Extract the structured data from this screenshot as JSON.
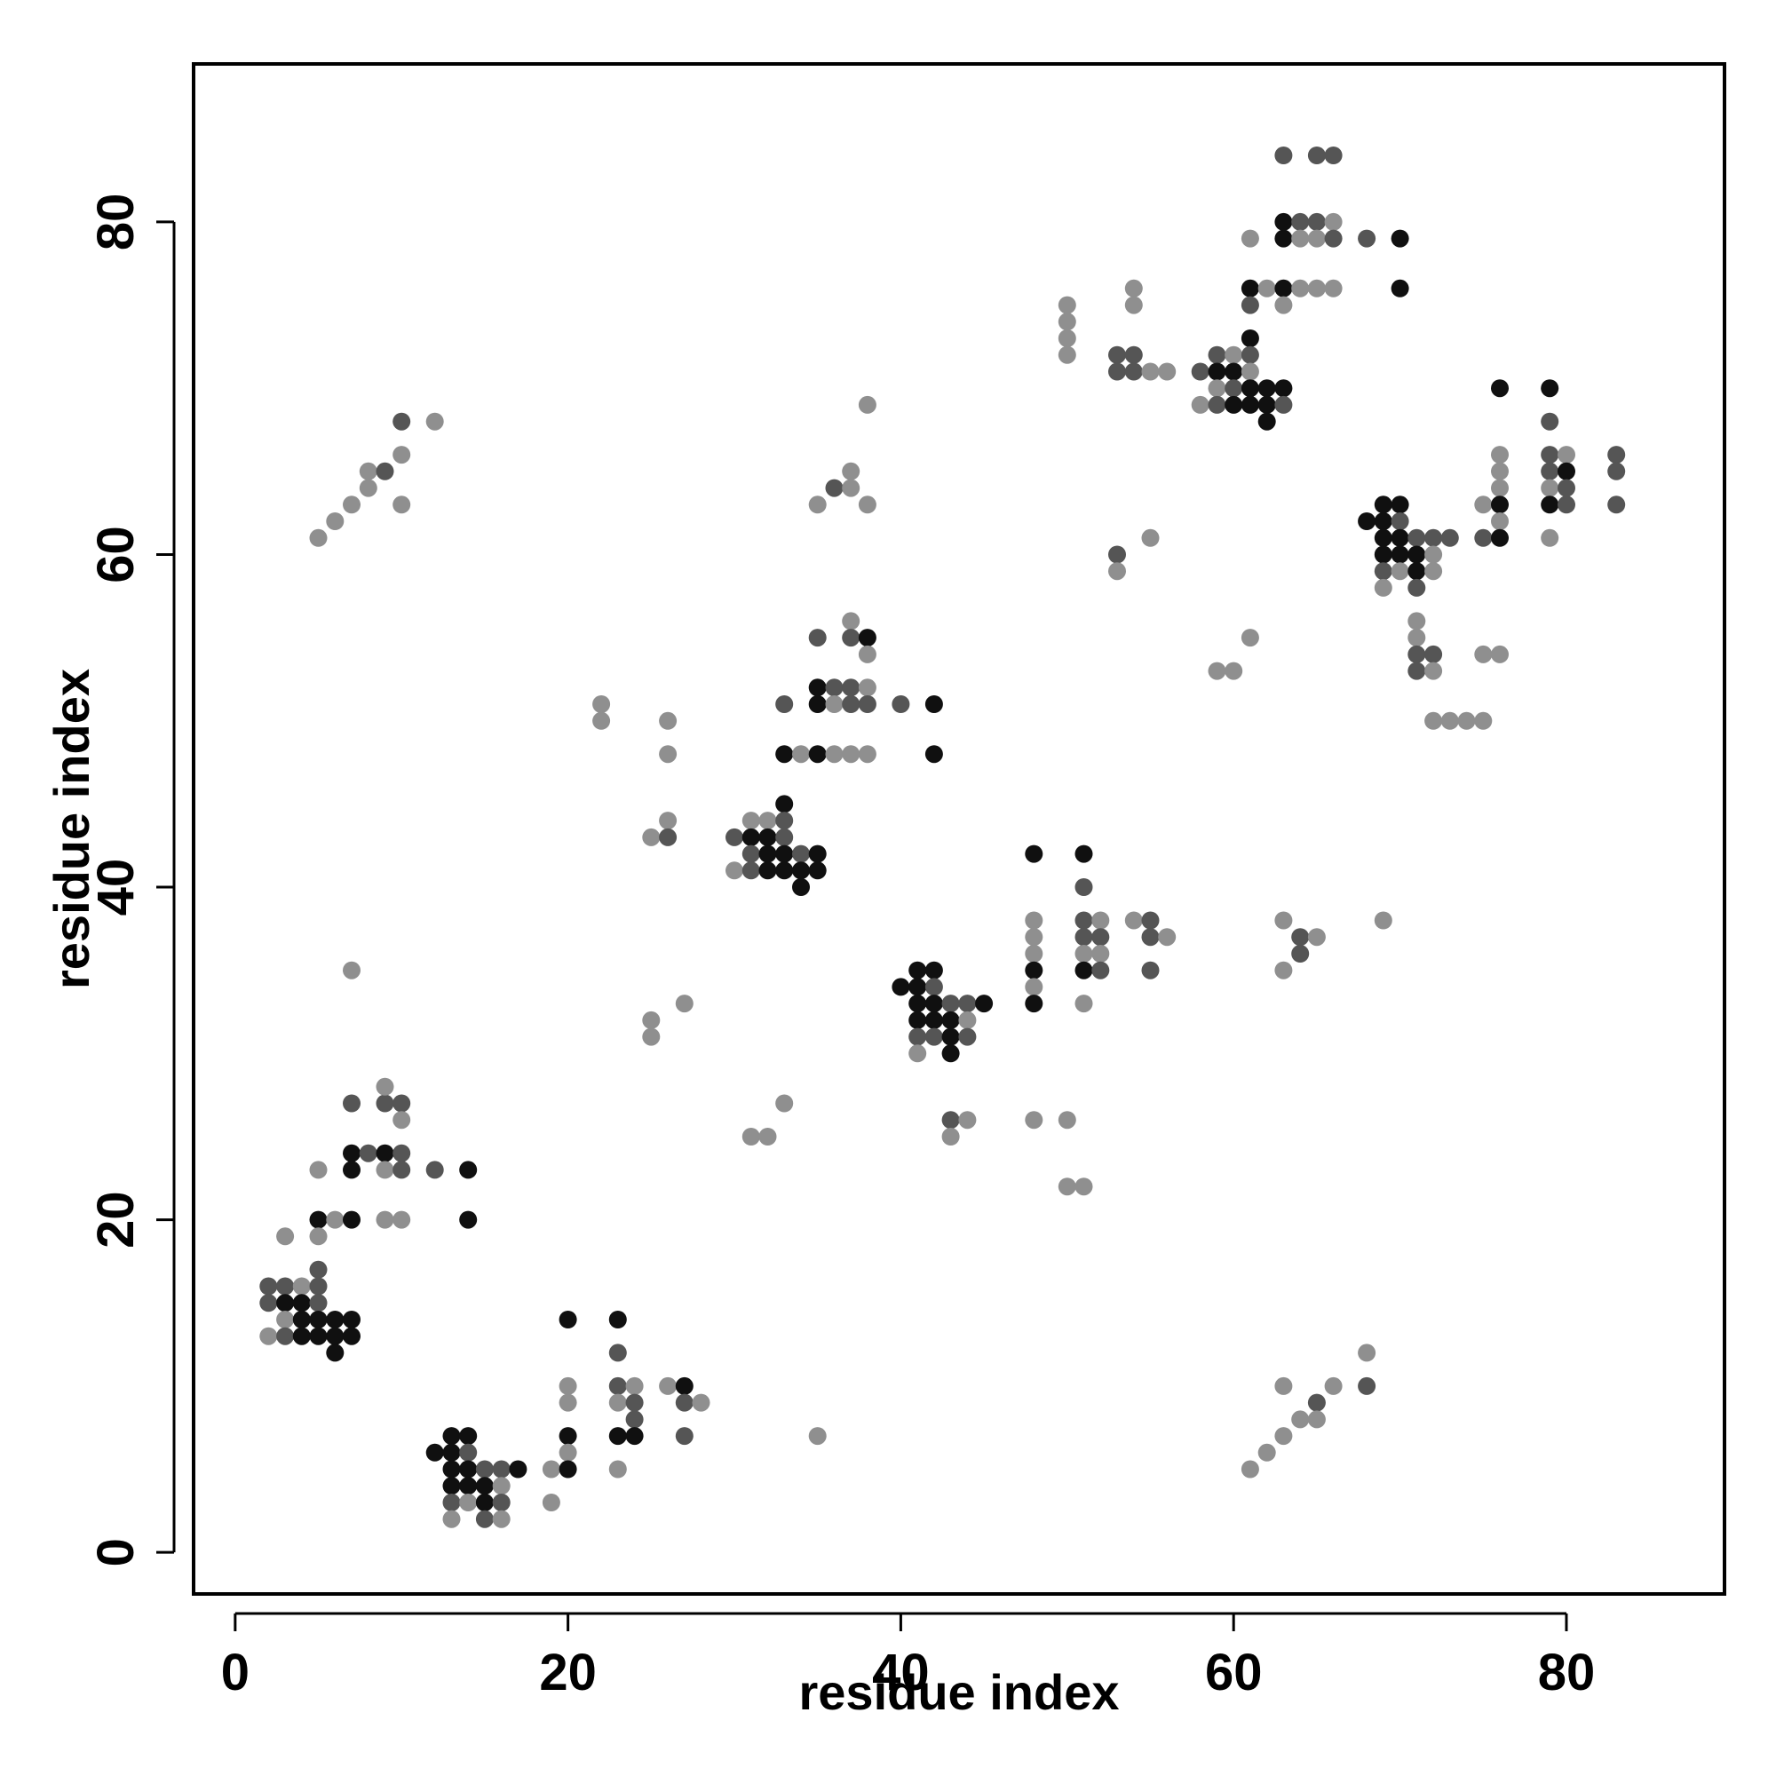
{
  "chart_data": {
    "type": "scatter",
    "title": "",
    "xlabel": "residue index",
    "ylabel": "residue index",
    "xlim": [
      -2.5,
      89.5
    ],
    "ylim": [
      -2.5,
      89.5
    ],
    "xticks": [
      0,
      20,
      40,
      60,
      80
    ],
    "yticks": [
      0,
      20,
      40,
      60,
      80
    ],
    "xtick_labels": [
      "0",
      "20",
      "40",
      "60",
      "80"
    ],
    "ytick_labels": [
      "0",
      "20",
      "40",
      "60",
      "80"
    ],
    "grid": false,
    "legend": "none",
    "colors": {
      "dark": "#101010",
      "mid": "#555555",
      "light": "#8f8f8f"
    },
    "points": [
      [
        2,
        16,
        "mid"
      ],
      [
        2,
        15,
        "mid"
      ],
      [
        2,
        13,
        "light"
      ],
      [
        3,
        16,
        "mid"
      ],
      [
        3,
        15,
        "dark"
      ],
      [
        3,
        14,
        "light"
      ],
      [
        3,
        13,
        "mid"
      ],
      [
        4,
        16,
        "light"
      ],
      [
        4,
        15,
        "dark"
      ],
      [
        4,
        14,
        "dark"
      ],
      [
        4,
        13,
        "dark"
      ],
      [
        5,
        20,
        "dark"
      ],
      [
        5,
        19,
        "light"
      ],
      [
        5,
        17,
        "mid"
      ],
      [
        5,
        16,
        "mid"
      ],
      [
        5,
        15,
        "mid"
      ],
      [
        5,
        14,
        "dark"
      ],
      [
        5,
        13,
        "dark"
      ],
      [
        6,
        14,
        "dark"
      ],
      [
        6,
        13,
        "dark"
      ],
      [
        6,
        12,
        "dark"
      ],
      [
        7,
        14,
        "dark"
      ],
      [
        7,
        13,
        "dark"
      ],
      [
        3,
        19,
        "light"
      ],
      [
        5,
        23,
        "light"
      ],
      [
        6,
        20,
        "light"
      ],
      [
        7,
        20,
        "dark"
      ],
      [
        7,
        23,
        "dark"
      ],
      [
        7,
        24,
        "dark"
      ],
      [
        7,
        27,
        "mid"
      ],
      [
        8,
        24,
        "mid"
      ],
      [
        9,
        24,
        "dark"
      ],
      [
        9,
        23,
        "light"
      ],
      [
        9,
        20,
        "light"
      ],
      [
        9,
        27,
        "mid"
      ],
      [
        9,
        28,
        "light"
      ],
      [
        10,
        27,
        "mid"
      ],
      [
        10,
        26,
        "light"
      ],
      [
        10,
        24,
        "mid"
      ],
      [
        10,
        23,
        "mid"
      ],
      [
        10,
        20,
        "light"
      ],
      [
        12,
        23,
        "mid"
      ],
      [
        14,
        23,
        "dark"
      ],
      [
        14,
        20,
        "dark"
      ],
      [
        7,
        35,
        "light"
      ],
      [
        5,
        61,
        "light"
      ],
      [
        6,
        62,
        "light"
      ],
      [
        7,
        63,
        "light"
      ],
      [
        8,
        64,
        "light"
      ],
      [
        8,
        65,
        "light"
      ],
      [
        9,
        65,
        "mid"
      ],
      [
        10,
        66,
        "light"
      ],
      [
        10,
        68,
        "mid"
      ],
      [
        10,
        63,
        "light"
      ],
      [
        12,
        68,
        "light"
      ],
      [
        12,
        6,
        "dark"
      ],
      [
        13,
        7,
        "dark"
      ],
      [
        13,
        6,
        "dark"
      ],
      [
        13,
        5,
        "dark"
      ],
      [
        13,
        4,
        "dark"
      ],
      [
        13,
        3,
        "mid"
      ],
      [
        13,
        2,
        "light"
      ],
      [
        14,
        7,
        "dark"
      ],
      [
        14,
        6,
        "mid"
      ],
      [
        14,
        5,
        "dark"
      ],
      [
        14,
        4,
        "dark"
      ],
      [
        14,
        3,
        "light"
      ],
      [
        15,
        5,
        "mid"
      ],
      [
        15,
        4,
        "dark"
      ],
      [
        15,
        3,
        "dark"
      ],
      [
        15,
        2,
        "mid"
      ],
      [
        16,
        5,
        "mid"
      ],
      [
        16,
        4,
        "light"
      ],
      [
        16,
        3,
        "mid"
      ],
      [
        16,
        2,
        "light"
      ],
      [
        17,
        5,
        "dark"
      ],
      [
        19,
        5,
        "light"
      ],
      [
        19,
        3,
        "light"
      ],
      [
        20,
        14,
        "dark"
      ],
      [
        20,
        10,
        "light"
      ],
      [
        20,
        9,
        "light"
      ],
      [
        20,
        7,
        "dark"
      ],
      [
        20,
        6,
        "light"
      ],
      [
        20,
        5,
        "dark"
      ],
      [
        23,
        14,
        "dark"
      ],
      [
        23,
        12,
        "mid"
      ],
      [
        23,
        10,
        "mid"
      ],
      [
        23,
        9,
        "light"
      ],
      [
        23,
        7,
        "dark"
      ],
      [
        23,
        5,
        "light"
      ],
      [
        24,
        10,
        "light"
      ],
      [
        24,
        9,
        "mid"
      ],
      [
        24,
        8,
        "mid"
      ],
      [
        24,
        7,
        "dark"
      ],
      [
        26,
        10,
        "light"
      ],
      [
        27,
        10,
        "dark"
      ],
      [
        27,
        9,
        "mid"
      ],
      [
        27,
        7,
        "mid"
      ],
      [
        28,
        9,
        "light"
      ],
      [
        35,
        7,
        "light"
      ],
      [
        22,
        51,
        "light"
      ],
      [
        22,
        50,
        "light"
      ],
      [
        26,
        50,
        "light"
      ],
      [
        26,
        48,
        "light"
      ],
      [
        25,
        43,
        "light"
      ],
      [
        26,
        44,
        "light"
      ],
      [
        26,
        43,
        "mid"
      ],
      [
        25,
        32,
        "light"
      ],
      [
        25,
        31,
        "light"
      ],
      [
        27,
        33,
        "light"
      ],
      [
        31,
        25,
        "light"
      ],
      [
        32,
        25,
        "light"
      ],
      [
        33,
        27,
        "light"
      ],
      [
        30,
        43,
        "mid"
      ],
      [
        30,
        41,
        "light"
      ],
      [
        31,
        44,
        "light"
      ],
      [
        31,
        43,
        "dark"
      ],
      [
        31,
        42,
        "mid"
      ],
      [
        31,
        41,
        "mid"
      ],
      [
        32,
        44,
        "light"
      ],
      [
        32,
        43,
        "dark"
      ],
      [
        32,
        42,
        "dark"
      ],
      [
        32,
        41,
        "dark"
      ],
      [
        33,
        45,
        "dark"
      ],
      [
        33,
        44,
        "mid"
      ],
      [
        33,
        43,
        "mid"
      ],
      [
        33,
        42,
        "dark"
      ],
      [
        33,
        41,
        "dark"
      ],
      [
        34,
        42,
        "mid"
      ],
      [
        34,
        41,
        "dark"
      ],
      [
        34,
        40,
        "dark"
      ],
      [
        35,
        42,
        "dark"
      ],
      [
        35,
        41,
        "dark"
      ],
      [
        33,
        51,
        "mid"
      ],
      [
        33,
        48,
        "dark"
      ],
      [
        34,
        48,
        "light"
      ],
      [
        35,
        55,
        "mid"
      ],
      [
        35,
        52,
        "dark"
      ],
      [
        35,
        51,
        "dark"
      ],
      [
        35,
        48,
        "dark"
      ],
      [
        36,
        52,
        "mid"
      ],
      [
        36,
        51,
        "light"
      ],
      [
        36,
        48,
        "light"
      ],
      [
        37,
        56,
        "light"
      ],
      [
        37,
        55,
        "mid"
      ],
      [
        37,
        52,
        "mid"
      ],
      [
        37,
        51,
        "mid"
      ],
      [
        37,
        48,
        "light"
      ],
      [
        38,
        55,
        "dark"
      ],
      [
        38,
        54,
        "light"
      ],
      [
        38,
        52,
        "light"
      ],
      [
        38,
        51,
        "mid"
      ],
      [
        38,
        48,
        "light"
      ],
      [
        40,
        51,
        "mid"
      ],
      [
        42,
        51,
        "dark"
      ],
      [
        42,
        48,
        "dark"
      ],
      [
        35,
        63,
        "light"
      ],
      [
        36,
        64,
        "mid"
      ],
      [
        37,
        64,
        "light"
      ],
      [
        37,
        65,
        "light"
      ],
      [
        38,
        63,
        "light"
      ],
      [
        38,
        69,
        "light"
      ],
      [
        40,
        34,
        "dark"
      ],
      [
        41,
        35,
        "dark"
      ],
      [
        41,
        34,
        "dark"
      ],
      [
        41,
        33,
        "dark"
      ],
      [
        41,
        32,
        "dark"
      ],
      [
        41,
        31,
        "mid"
      ],
      [
        41,
        30,
        "light"
      ],
      [
        42,
        35,
        "dark"
      ],
      [
        42,
        34,
        "mid"
      ],
      [
        42,
        33,
        "dark"
      ],
      [
        42,
        32,
        "dark"
      ],
      [
        42,
        31,
        "mid"
      ],
      [
        43,
        33,
        "mid"
      ],
      [
        43,
        32,
        "dark"
      ],
      [
        43,
        31,
        "dark"
      ],
      [
        43,
        30,
        "dark"
      ],
      [
        43,
        26,
        "mid"
      ],
      [
        43,
        25,
        "light"
      ],
      [
        44,
        33,
        "mid"
      ],
      [
        44,
        32,
        "light"
      ],
      [
        44,
        31,
        "mid"
      ],
      [
        44,
        26,
        "light"
      ],
      [
        45,
        33,
        "dark"
      ],
      [
        48,
        42,
        "dark"
      ],
      [
        48,
        38,
        "light"
      ],
      [
        48,
        37,
        "light"
      ],
      [
        48,
        36,
        "light"
      ],
      [
        48,
        35,
        "dark"
      ],
      [
        48,
        34,
        "light"
      ],
      [
        48,
        33,
        "dark"
      ],
      [
        48,
        26,
        "light"
      ],
      [
        50,
        26,
        "light"
      ],
      [
        50,
        22,
        "light"
      ],
      [
        51,
        22,
        "light"
      ],
      [
        51,
        42,
        "dark"
      ],
      [
        51,
        40,
        "mid"
      ],
      [
        51,
        38,
        "mid"
      ],
      [
        51,
        37,
        "mid"
      ],
      [
        51,
        36,
        "light"
      ],
      [
        51,
        35,
        "dark"
      ],
      [
        51,
        33,
        "light"
      ],
      [
        52,
        38,
        "light"
      ],
      [
        52,
        37,
        "mid"
      ],
      [
        52,
        36,
        "light"
      ],
      [
        52,
        35,
        "mid"
      ],
      [
        54,
        38,
        "light"
      ],
      [
        55,
        38,
        "mid"
      ],
      [
        55,
        37,
        "mid"
      ],
      [
        55,
        35,
        "mid"
      ],
      [
        56,
        37,
        "light"
      ],
      [
        50,
        75,
        "light"
      ],
      [
        50,
        74,
        "light"
      ],
      [
        50,
        73,
        "light"
      ],
      [
        50,
        72,
        "light"
      ],
      [
        53,
        72,
        "mid"
      ],
      [
        53,
        71,
        "mid"
      ],
      [
        53,
        60,
        "mid"
      ],
      [
        53,
        59,
        "light"
      ],
      [
        54,
        76,
        "light"
      ],
      [
        54,
        75,
        "light"
      ],
      [
        54,
        72,
        "mid"
      ],
      [
        54,
        71,
        "mid"
      ],
      [
        55,
        71,
        "light"
      ],
      [
        55,
        61,
        "light"
      ],
      [
        56,
        71,
        "light"
      ],
      [
        58,
        71,
        "mid"
      ],
      [
        58,
        69,
        "light"
      ],
      [
        59,
        72,
        "mid"
      ],
      [
        59,
        71,
        "dark"
      ],
      [
        59,
        70,
        "light"
      ],
      [
        59,
        69,
        "mid"
      ],
      [
        59,
        53,
        "light"
      ],
      [
        60,
        72,
        "light"
      ],
      [
        60,
        71,
        "dark"
      ],
      [
        60,
        70,
        "mid"
      ],
      [
        60,
        69,
        "dark"
      ],
      [
        60,
        53,
        "light"
      ],
      [
        61,
        79,
        "light"
      ],
      [
        61,
        76,
        "dark"
      ],
      [
        61,
        75,
        "mid"
      ],
      [
        61,
        73,
        "dark"
      ],
      [
        61,
        72,
        "mid"
      ],
      [
        61,
        71,
        "light"
      ],
      [
        61,
        70,
        "dark"
      ],
      [
        61,
        69,
        "dark"
      ],
      [
        61,
        55,
        "light"
      ],
      [
        62,
        76,
        "light"
      ],
      [
        62,
        70,
        "dark"
      ],
      [
        62,
        69,
        "dark"
      ],
      [
        62,
        68,
        "dark"
      ],
      [
        63,
        84,
        "mid"
      ],
      [
        63,
        80,
        "dark"
      ],
      [
        63,
        79,
        "dark"
      ],
      [
        63,
        76,
        "dark"
      ],
      [
        63,
        75,
        "light"
      ],
      [
        63,
        70,
        "dark"
      ],
      [
        63,
        69,
        "mid"
      ],
      [
        63,
        38,
        "light"
      ],
      [
        63,
        35,
        "light"
      ],
      [
        64,
        37,
        "mid"
      ],
      [
        64,
        36,
        "mid"
      ],
      [
        65,
        37,
        "light"
      ],
      [
        64,
        80,
        "mid"
      ],
      [
        64,
        79,
        "light"
      ],
      [
        64,
        76,
        "light"
      ],
      [
        65,
        84,
        "mid"
      ],
      [
        65,
        80,
        "mid"
      ],
      [
        65,
        79,
        "light"
      ],
      [
        65,
        76,
        "light"
      ],
      [
        66,
        84,
        "mid"
      ],
      [
        66,
        80,
        "light"
      ],
      [
        66,
        79,
        "mid"
      ],
      [
        66,
        76,
        "light"
      ],
      [
        68,
        79,
        "mid"
      ],
      [
        70,
        79,
        "dark"
      ],
      [
        70,
        76,
        "dark"
      ],
      [
        68,
        62,
        "dark"
      ],
      [
        69,
        63,
        "dark"
      ],
      [
        69,
        62,
        "dark"
      ],
      [
        69,
        61,
        "dark"
      ],
      [
        69,
        60,
        "dark"
      ],
      [
        69,
        59,
        "mid"
      ],
      [
        69,
        58,
        "light"
      ],
      [
        70,
        63,
        "dark"
      ],
      [
        70,
        62,
        "mid"
      ],
      [
        70,
        61,
        "dark"
      ],
      [
        70,
        60,
        "dark"
      ],
      [
        70,
        59,
        "light"
      ],
      [
        71,
        61,
        "mid"
      ],
      [
        71,
        60,
        "dark"
      ],
      [
        71,
        59,
        "dark"
      ],
      [
        71,
        58,
        "mid"
      ],
      [
        71,
        56,
        "light"
      ],
      [
        71,
        55,
        "light"
      ],
      [
        71,
        54,
        "mid"
      ],
      [
        71,
        53,
        "mid"
      ],
      [
        72,
        61,
        "mid"
      ],
      [
        72,
        60,
        "light"
      ],
      [
        72,
        59,
        "light"
      ],
      [
        72,
        54,
        "mid"
      ],
      [
        72,
        53,
        "light"
      ],
      [
        72,
        50,
        "light"
      ],
      [
        73,
        61,
        "mid"
      ],
      [
        73,
        50,
        "light"
      ],
      [
        74,
        50,
        "light"
      ],
      [
        75,
        50,
        "light"
      ],
      [
        69,
        38,
        "light"
      ],
      [
        75,
        63,
        "light"
      ],
      [
        75,
        61,
        "mid"
      ],
      [
        75,
        54,
        "light"
      ],
      [
        76,
        70,
        "dark"
      ],
      [
        76,
        66,
        "light"
      ],
      [
        76,
        65,
        "light"
      ],
      [
        76,
        64,
        "light"
      ],
      [
        76,
        63,
        "dark"
      ],
      [
        76,
        62,
        "light"
      ],
      [
        76,
        61,
        "dark"
      ],
      [
        76,
        54,
        "light"
      ],
      [
        79,
        70,
        "dark"
      ],
      [
        79,
        68,
        "mid"
      ],
      [
        79,
        66,
        "mid"
      ],
      [
        79,
        65,
        "mid"
      ],
      [
        79,
        64,
        "light"
      ],
      [
        79,
        63,
        "dark"
      ],
      [
        79,
        61,
        "light"
      ],
      [
        80,
        66,
        "light"
      ],
      [
        80,
        65,
        "dark"
      ],
      [
        80,
        64,
        "mid"
      ],
      [
        80,
        63,
        "mid"
      ],
      [
        83,
        66,
        "mid"
      ],
      [
        83,
        65,
        "mid"
      ],
      [
        83,
        63,
        "mid"
      ],
      [
        61,
        5,
        "light"
      ],
      [
        62,
        6,
        "light"
      ],
      [
        63,
        7,
        "light"
      ],
      [
        63,
        10,
        "light"
      ],
      [
        64,
        8,
        "light"
      ],
      [
        65,
        9,
        "mid"
      ],
      [
        65,
        8,
        "light"
      ],
      [
        66,
        10,
        "light"
      ],
      [
        68,
        12,
        "light"
      ],
      [
        68,
        10,
        "mid"
      ]
    ]
  }
}
